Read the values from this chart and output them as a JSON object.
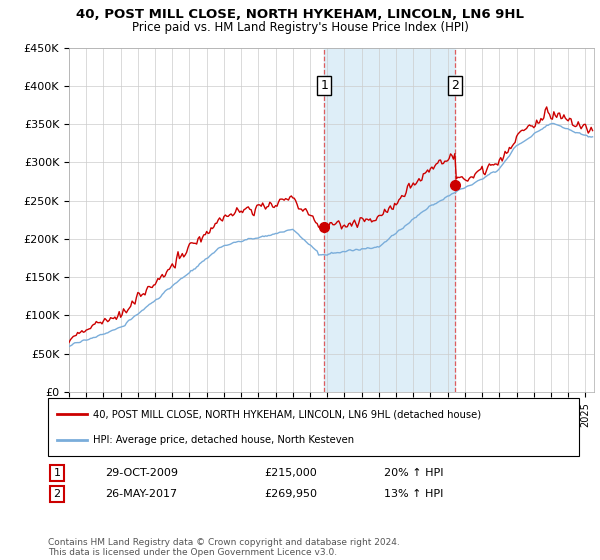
{
  "title": "40, POST MILL CLOSE, NORTH HYKEHAM, LINCOLN, LN6 9HL",
  "subtitle": "Price paid vs. HM Land Registry's House Price Index (HPI)",
  "ylabel_ticks": [
    "£0",
    "£50K",
    "£100K",
    "£150K",
    "£200K",
    "£250K",
    "£300K",
    "£350K",
    "£400K",
    "£450K"
  ],
  "ylim": [
    0,
    450000
  ],
  "xlim_start": 1995.0,
  "xlim_end": 2025.5,
  "transaction1_x": 2009.83,
  "transaction1_y": 215000,
  "transaction2_x": 2017.42,
  "transaction2_y": 269950,
  "transaction1_date": "29-OCT-2009",
  "transaction1_price": "£215,000",
  "transaction1_hpi": "20% ↑ HPI",
  "transaction2_date": "26-MAY-2017",
  "transaction2_price": "£269,950",
  "transaction2_hpi": "13% ↑ HPI",
  "red_line_color": "#cc0000",
  "blue_line_color": "#7aadda",
  "shaded_color": "#deeef8",
  "vline_color": "#dd4444",
  "legend_label1": "40, POST MILL CLOSE, NORTH HYKEHAM, LINCOLN, LN6 9HL (detached house)",
  "legend_label2": "HPI: Average price, detached house, North Kesteven",
  "footnote": "Contains HM Land Registry data © Crown copyright and database right 2024.\nThis data is licensed under the Open Government Licence v3.0.",
  "background_color": "#ffffff",
  "plot_bg_color": "#ffffff"
}
